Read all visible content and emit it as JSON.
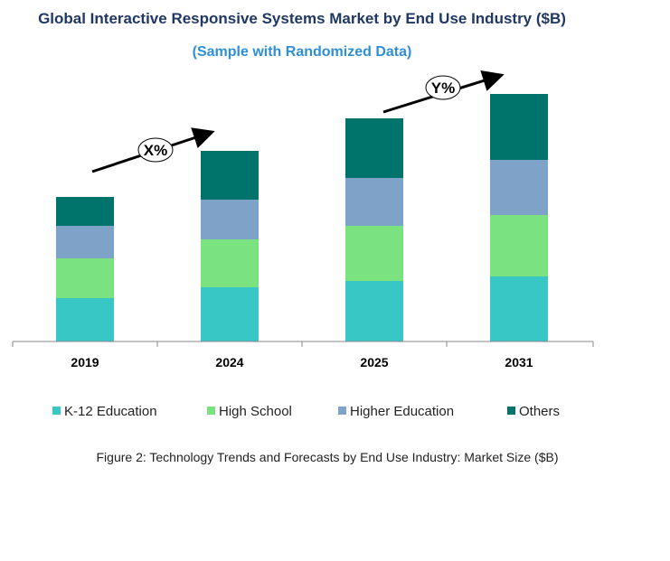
{
  "chart_data": {
    "type": "bar",
    "stacked": true,
    "title": "Global Interactive Responsive Systems Market by End Use Industry ($B)",
    "subtitle": "(Sample with Randomized Data)",
    "categories": [
      "2019",
      "2024",
      "2025",
      "2031"
    ],
    "series": [
      {
        "name": "K-12 Education",
        "color": "#38c7c5",
        "values": [
          4.8,
          6.0,
          6.7,
          7.2
        ]
      },
      {
        "name": "High School",
        "color": "#7ae27e",
        "values": [
          4.4,
          5.3,
          6.1,
          6.8
        ]
      },
      {
        "name": "Higher Education",
        "color": "#7fa3c8",
        "values": [
          3.6,
          4.4,
          5.3,
          6.1
        ]
      },
      {
        "name": "Others",
        "color": "#00736a",
        "values": [
          3.2,
          5.4,
          6.6,
          7.3
        ]
      }
    ],
    "ylim": [
      0,
      30
    ],
    "grid": false,
    "y_axis_visible": false,
    "legend_placement": "bottom",
    "annotations": [
      {
        "label": "X%",
        "from": "2019",
        "to": "2024"
      },
      {
        "label": "Y%",
        "from": "2025",
        "to": "2031"
      }
    ],
    "caption": "Figure 2: Technology  Trends  and Forecasts by End Use Industry:  Market Size ($B)"
  }
}
